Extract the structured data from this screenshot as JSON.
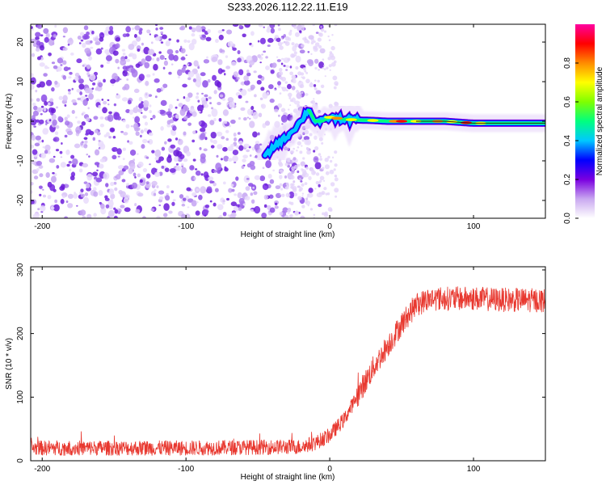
{
  "title": "S233.2026.112.22.11.E19",
  "chart_data": [
    {
      "type": "heatmap",
      "xlabel": "Height of straight line (km)",
      "ylabel": "Frequency (Hz)",
      "xlim": [
        -208,
        150
      ],
      "ylim": [
        -24.5,
        24.5
      ],
      "xticks": [
        -200,
        -100,
        0,
        100
      ],
      "yticks": [
        -20,
        -10,
        0,
        10,
        20
      ],
      "track": {
        "x": [
          -45,
          -38,
          -30,
          -25,
          -20,
          -15,
          -10,
          -5,
          0,
          10,
          20,
          30,
          40,
          60,
          80,
          100,
          120,
          150
        ],
        "y": [
          -9,
          -6,
          -4,
          -2,
          0,
          3,
          0,
          0,
          1,
          0.5,
          0.3,
          0.2,
          0,
          0,
          0,
          -0.5,
          -0.5,
          -0.5
        ]
      },
      "noise_region": {
        "x_from": -208,
        "x_to": -20,
        "description": "scattered low-amplitude speckle"
      },
      "colorbar": {
        "label": "Normalized spectral amplitude",
        "range": [
          0,
          1
        ],
        "ticks": [
          "0.0",
          "0.2",
          "0.4",
          "0.6",
          "0.8"
        ],
        "colors": [
          "#ffffff",
          "#c9a8f0",
          "#7a00e0",
          "#0000ff",
          "#00c8ff",
          "#00ff7f",
          "#7fff00",
          "#ffff00",
          "#ff8c00",
          "#ff0000",
          "#ff00a0"
        ]
      }
    },
    {
      "type": "line",
      "xlabel": "Height of straight line (km)",
      "ylabel": "SNR (10 * v/v)",
      "xlim": [
        -208,
        150
      ],
      "ylim": [
        0,
        305
      ],
      "xticks": [
        -200,
        -100,
        0,
        100
      ],
      "yticks": [
        0,
        100,
        200,
        300
      ],
      "color": "#e8382f",
      "series": [
        {
          "name": "SNR",
          "x": [
            -208,
            -100,
            -20,
            -10,
            0,
            10,
            20,
            30,
            40,
            50,
            60,
            70,
            80,
            100,
            120,
            150
          ],
          "y": [
            20,
            20,
            22,
            28,
            40,
            65,
            105,
            145,
            180,
            215,
            245,
            255,
            255,
            255,
            253,
            252
          ],
          "noise_amplitude": 12
        }
      ]
    }
  ]
}
